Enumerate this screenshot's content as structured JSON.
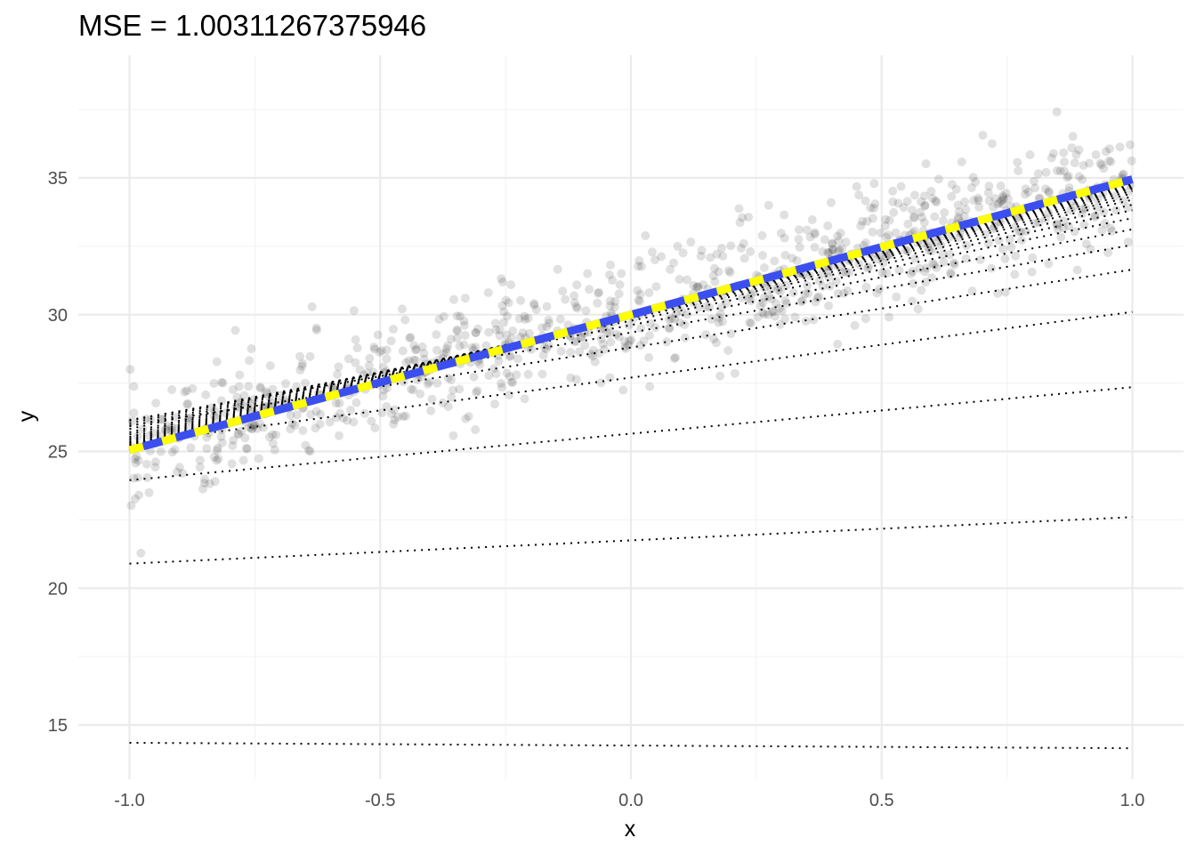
{
  "chart_data": {
    "type": "scatter",
    "title": "MSE = 1.00311267375946",
    "xlabel": "x",
    "ylabel": "y",
    "xlim": [
      -1.0,
      1.0
    ],
    "ylim": [
      13.3,
      38.5
    ],
    "x_ticks": [
      -1.0,
      -0.5,
      0.0,
      0.5,
      1.0
    ],
    "x_tick_labels": [
      "-1.0",
      "-0.5",
      "0.0",
      "0.5",
      "1.0"
    ],
    "y_ticks": [
      15,
      20,
      25,
      30,
      35
    ],
    "y_tick_labels": [
      "15",
      "20",
      "25",
      "30",
      "35"
    ],
    "grid": true,
    "legend": "none",
    "points": {
      "count": 1000,
      "true_intercept": 30,
      "true_slope": 5,
      "noise_sd": 1.0,
      "color": "#000000",
      "opacity": 0.12
    },
    "iteration_lines": [
      {
        "intercept": 14.25,
        "slope": -0.1
      },
      {
        "intercept": 21.75,
        "slope": 0.85
      },
      {
        "intercept": 25.65,
        "slope": 1.7
      },
      {
        "intercept": 27.7,
        "slope": 2.4
      },
      {
        "intercept": 28.8,
        "slope": 2.85
      },
      {
        "intercept": 29.35,
        "slope": 3.2
      },
      {
        "intercept": 29.62,
        "slope": 3.5
      },
      {
        "intercept": 29.78,
        "slope": 3.75
      },
      {
        "intercept": 29.87,
        "slope": 3.95
      },
      {
        "intercept": 29.92,
        "slope": 4.1
      },
      {
        "intercept": 29.95,
        "slope": 4.25
      },
      {
        "intercept": 29.97,
        "slope": 4.35
      },
      {
        "intercept": 29.98,
        "slope": 4.45
      },
      {
        "intercept": 29.99,
        "slope": 4.53
      },
      {
        "intercept": 30.0,
        "slope": 4.6
      },
      {
        "intercept": 30.0,
        "slope": 4.66
      },
      {
        "intercept": 30.0,
        "slope": 4.71
      },
      {
        "intercept": 30.0,
        "slope": 4.76
      },
      {
        "intercept": 30.0,
        "slope": 4.8
      },
      {
        "intercept": 30.0,
        "slope": 4.84
      },
      {
        "intercept": 30.0,
        "slope": 4.87
      },
      {
        "intercept": 30.0,
        "slope": 4.9
      },
      {
        "intercept": 30.0,
        "slope": 4.93
      },
      {
        "intercept": 30.0,
        "slope": 4.95
      },
      {
        "intercept": 30.0,
        "slope": 4.97
      }
    ],
    "fit_line": {
      "intercept": 30.0,
      "slope": 4.95,
      "color": "#3b4ff0"
    },
    "true_line": {
      "intercept": 30.0,
      "slope": 4.95,
      "color": "#ffff00",
      "style": "dashed"
    }
  }
}
